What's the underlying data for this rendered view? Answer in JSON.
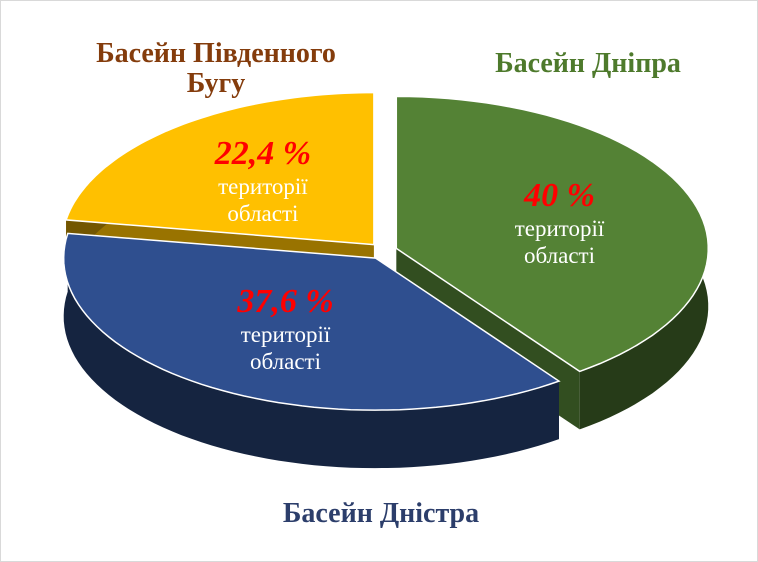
{
  "chart_data": {
    "type": "pie3d",
    "categories": [
      "Басейн Дніпра",
      "Басейн Дністра",
      "Басейн Південного Бугу"
    ],
    "values": [
      40,
      37.6,
      22.4
    ],
    "value_labels": [
      "40 %",
      "37,6 %",
      "22,4 %"
    ],
    "slice_caption": "території області",
    "colors": [
      "#548235",
      "#2f4f8f",
      "#ffc000"
    ],
    "label_colors": [
      "#4e7a2c",
      "#2c3e6b",
      "#843c0c"
    ],
    "value_label_color": "#ff0000"
  }
}
